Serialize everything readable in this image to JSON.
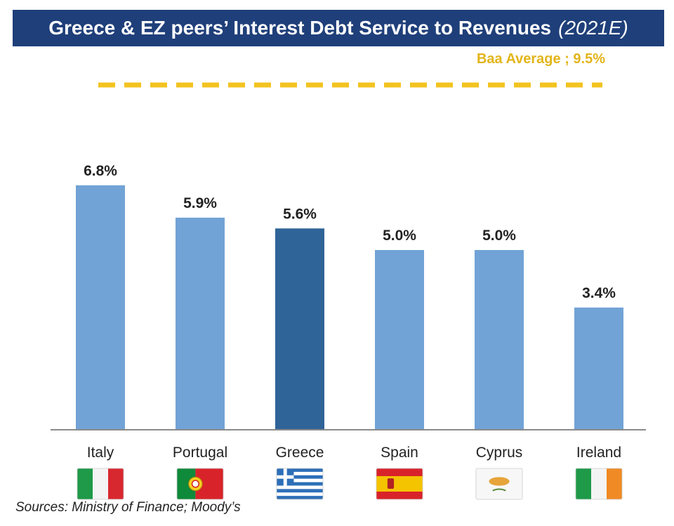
{
  "colors": {
    "title_background": "#1f3f7a",
    "bar_default": "#72a3d6",
    "bar_highlight": "#2f6498",
    "reference_line": "#f2c320",
    "text": "#222222"
  },
  "chart_data": {
    "type": "bar",
    "title": "Greece & EZ peers’ Interest Debt Service to Revenues",
    "subtitle": "(2021E)",
    "categories": [
      "Italy",
      "Portugal",
      "Greece",
      "Spain",
      "Cyprus",
      "Ireland"
    ],
    "values": [
      6.8,
      5.9,
      5.6,
      5.0,
      5.0,
      3.4
    ],
    "value_labels": [
      "6.8%",
      "5.9%",
      "5.6%",
      "5.0%",
      "5.0%",
      "3.4%"
    ],
    "highlight_category": "Greece",
    "reference_line": {
      "label": "Baa Average ; 9.5%",
      "value": 9.5,
      "style": "dashed"
    },
    "category_icons": [
      "italy-flag-icon",
      "portugal-flag-icon",
      "greece-flag-icon",
      "spain-flag-icon",
      "cyprus-flag-icon",
      "ireland-flag-icon"
    ],
    "xlabel": "",
    "ylabel": "",
    "grid": false,
    "y_axis_visible": false
  },
  "footer": {
    "source": "Sources: Ministry of Finance; Moody’s"
  }
}
